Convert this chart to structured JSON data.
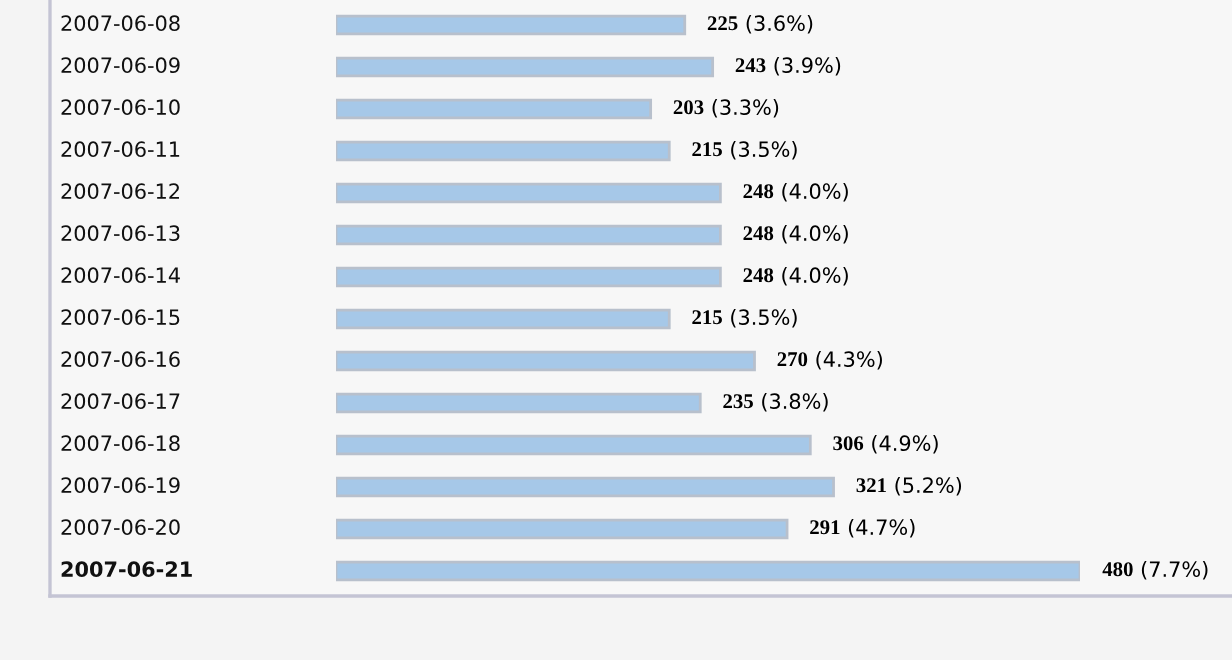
{
  "chart_data": {
    "type": "bar",
    "orientation": "horizontal",
    "categories": [
      "2007-06-08",
      "2007-06-09",
      "2007-06-10",
      "2007-06-11",
      "2007-06-12",
      "2007-06-13",
      "2007-06-14",
      "2007-06-15",
      "2007-06-16",
      "2007-06-17",
      "2007-06-18",
      "2007-06-19",
      "2007-06-20",
      "2007-06-21"
    ],
    "values": [
      225,
      243,
      203,
      215,
      248,
      248,
      248,
      215,
      270,
      235,
      306,
      321,
      291,
      480
    ],
    "value_labels": [
      "225 (3.6%)",
      "243 (3.9%)",
      "203 (3.3%)",
      "215 (3.5%)",
      "248 (4.0%)",
      "248 (4.0%)",
      "248 (4.0%)",
      "215 (3.5%)",
      "270 (4.3%)",
      "235 (3.8%)",
      "306 (4.9%)",
      "321 (5.2%)",
      "291 (4.7%)",
      "480 (7.7%)"
    ],
    "color": "#a6c8e8"
  }
}
